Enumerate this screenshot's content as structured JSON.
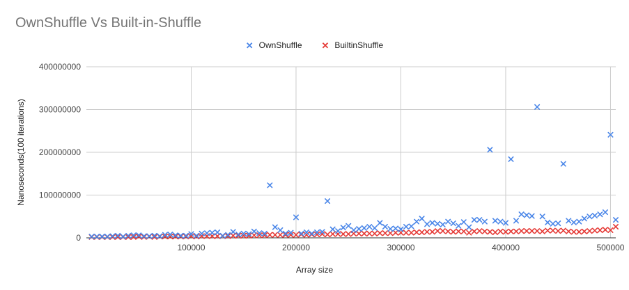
{
  "colors": {
    "own": "#4a86e8",
    "builtin": "#e53935",
    "grid": "#cccccc",
    "title": "#757575"
  },
  "chart_data": {
    "type": "scatter",
    "title": "OwnShuffle Vs Built-in-Shuffle",
    "xlabel": "Array size",
    "ylabel": "Nanoseconds(100 iterations)",
    "xlim": [
      0,
      505000
    ],
    "ylim": [
      0,
      400000000
    ],
    "xticks": [
      100000,
      200000,
      300000,
      400000,
      500000
    ],
    "yticks": [
      0,
      100000000,
      200000000,
      300000000,
      400000000
    ],
    "legend_position": "top",
    "marker": "x",
    "grid": true,
    "series": [
      {
        "name": "OwnShuffle",
        "color": "#4a86e8",
        "x": [
          5000,
          10000,
          15000,
          20000,
          25000,
          30000,
          35000,
          40000,
          45000,
          50000,
          55000,
          60000,
          65000,
          70000,
          75000,
          80000,
          85000,
          90000,
          95000,
          100000,
          105000,
          110000,
          115000,
          120000,
          125000,
          130000,
          135000,
          140000,
          145000,
          150000,
          155000,
          160000,
          165000,
          170000,
          175000,
          180000,
          185000,
          190000,
          195000,
          200000,
          205000,
          210000,
          215000,
          220000,
          225000,
          230000,
          235000,
          240000,
          245000,
          250000,
          255000,
          260000,
          265000,
          270000,
          275000,
          280000,
          285000,
          290000,
          295000,
          300000,
          305000,
          310000,
          315000,
          320000,
          325000,
          330000,
          335000,
          340000,
          345000,
          350000,
          355000,
          360000,
          365000,
          370000,
          375000,
          380000,
          385000,
          390000,
          395000,
          400000,
          405000,
          410000,
          415000,
          420000,
          425000,
          430000,
          435000,
          440000,
          445000,
          450000,
          455000,
          460000,
          465000,
          470000,
          475000,
          480000,
          485000,
          490000,
          495000,
          500000,
          505000
        ],
        "y": [
          3000000,
          3000000,
          3000000,
          3000000,
          4000000,
          5000000,
          3000000,
          5000000,
          6000000,
          6000000,
          4000000,
          4000000,
          5000000,
          4000000,
          7000000,
          8000000,
          6000000,
          5000000,
          5000000,
          9000000,
          5000000,
          10000000,
          11000000,
          12000000,
          13000000,
          5000000,
          7000000,
          14000000,
          8000000,
          10000000,
          9000000,
          15000000,
          11000000,
          10000000,
          123000000,
          25000000,
          18000000,
          10000000,
          12000000,
          48000000,
          10000000,
          13000000,
          10000000,
          13000000,
          14000000,
          86000000,
          20000000,
          16000000,
          24000000,
          28000000,
          18000000,
          21000000,
          23000000,
          26000000,
          23000000,
          35000000,
          26000000,
          21000000,
          22000000,
          20000000,
          26000000,
          27000000,
          38000000,
          45000000,
          32000000,
          35000000,
          33000000,
          31000000,
          38000000,
          34000000,
          28000000,
          37000000,
          25000000,
          42000000,
          42000000,
          38000000,
          206000000,
          40000000,
          38000000,
          35000000,
          184000000,
          40000000,
          55000000,
          53000000,
          51000000,
          306000000,
          50000000,
          36000000,
          33000000,
          34000000,
          173000000,
          40000000,
          36000000,
          38000000,
          45000000,
          50000000,
          52000000,
          55000000,
          60000000,
          241000000,
          42000000
        ]
      },
      {
        "name": "BuiltinShuffle",
        "color": "#e53935",
        "x": [
          5000,
          10000,
          15000,
          20000,
          25000,
          30000,
          35000,
          40000,
          45000,
          50000,
          55000,
          60000,
          65000,
          70000,
          75000,
          80000,
          85000,
          90000,
          95000,
          100000,
          105000,
          110000,
          115000,
          120000,
          125000,
          130000,
          135000,
          140000,
          145000,
          150000,
          155000,
          160000,
          165000,
          170000,
          175000,
          180000,
          185000,
          190000,
          195000,
          200000,
          205000,
          210000,
          215000,
          220000,
          225000,
          230000,
          235000,
          240000,
          245000,
          250000,
          255000,
          260000,
          265000,
          270000,
          275000,
          280000,
          285000,
          290000,
          295000,
          300000,
          305000,
          310000,
          315000,
          320000,
          325000,
          330000,
          335000,
          340000,
          345000,
          350000,
          355000,
          360000,
          365000,
          370000,
          375000,
          380000,
          385000,
          390000,
          395000,
          400000,
          405000,
          410000,
          415000,
          420000,
          425000,
          430000,
          435000,
          440000,
          445000,
          450000,
          455000,
          460000,
          465000,
          470000,
          475000,
          480000,
          485000,
          490000,
          495000,
          500000,
          505000
        ],
        "y": [
          2000000,
          2000000,
          2000000,
          2000000,
          2000000,
          2000000,
          2000000,
          2000000,
          2000000,
          3000000,
          2000000,
          3000000,
          2000000,
          3000000,
          3000000,
          3000000,
          3000000,
          3000000,
          3000000,
          4000000,
          3000000,
          4000000,
          4000000,
          4000000,
          4000000,
          4000000,
          4000000,
          5000000,
          5000000,
          5000000,
          5000000,
          6000000,
          6000000,
          6000000,
          7000000,
          7000000,
          7000000,
          7000000,
          7000000,
          7000000,
          8000000,
          7000000,
          8000000,
          8000000,
          9000000,
          8000000,
          9000000,
          9000000,
          9000000,
          9000000,
          10000000,
          10000000,
          10000000,
          10000000,
          10000000,
          11000000,
          11000000,
          11000000,
          12000000,
          12000000,
          12000000,
          12000000,
          13000000,
          13000000,
          14000000,
          14000000,
          16000000,
          16000000,
          15000000,
          14000000,
          15000000,
          15000000,
          12000000,
          15000000,
          16000000,
          15000000,
          14000000,
          13000000,
          15000000,
          14000000,
          15000000,
          15000000,
          16000000,
          16000000,
          16000000,
          16000000,
          15000000,
          17000000,
          17000000,
          16000000,
          17000000,
          15000000,
          14000000,
          14000000,
          15000000,
          16000000,
          17000000,
          18000000,
          19000000,
          18000000,
          26000000
        ]
      }
    ]
  }
}
